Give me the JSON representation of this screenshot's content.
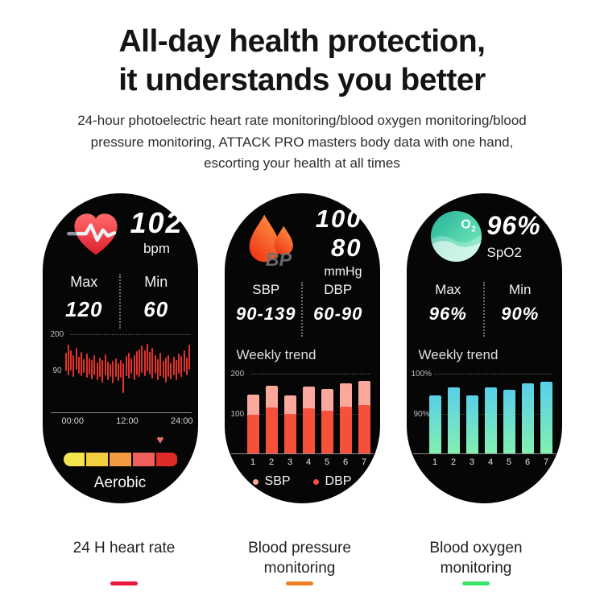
{
  "header": {
    "title_line1": "All-day health protection,",
    "title_line2": "it understands you better",
    "subtitle_line1": "24-hour photoelectric heart rate monitoring/blood oxygen monitoring/blood",
    "subtitle_line2": "pressure monitoring, ATTACK PRO masters body data with one hand,",
    "subtitle_line3": "escorting your health at all times"
  },
  "screens": {
    "heart_rate": {
      "value": "102",
      "unit": "bpm",
      "max_label": "Max",
      "max_value": "120",
      "min_label": "Min",
      "min_value": "60",
      "zone_label": "Aerobic",
      "zone_colors": [
        "#f4e44e",
        "#f2cf3e",
        "#f29a40",
        "#ef5f5b",
        "#de2d28"
      ],
      "zone_marker_icon": "heart-icon",
      "zone_marker_glyph": "♥"
    },
    "blood_pressure": {
      "icon_text": "BP",
      "sys_value": "100",
      "dia_value": "80",
      "unit": "mmHg",
      "sbp_label": "SBP",
      "sbp_range": "90-139",
      "dbp_label": "DBP",
      "dbp_range": "60-90",
      "trend_title": "Weekly trend"
    },
    "blood_oxygen": {
      "icon_text": "O2",
      "value": "96%",
      "unit": "SpO2",
      "max_label": "Max",
      "max_value": "96%",
      "min_label": "Min",
      "min_value": "90%",
      "trend_title": "Weekly trend"
    }
  },
  "captions": [
    {
      "line1": "24 H heart rate",
      "line2": "",
      "color": "#e8173f"
    },
    {
      "line1": "Blood pressure",
      "line2": "monitoring",
      "color": "#ee7f22"
    },
    {
      "line1": "Blood oxygen",
      "line2": "monitoring",
      "color": "#3be465"
    }
  ],
  "chart_data": [
    {
      "id": "heart-rate-24h",
      "type": "bar",
      "title": "",
      "ylabel": "bpm",
      "yticks": [
        "200",
        "90"
      ],
      "ylim": [
        -40,
        200
      ],
      "xticks": [
        "00:00",
        "12:00",
        "24:00"
      ],
      "grid": "dotted-top",
      "bar_color": "#e1332b",
      "ranges": [
        [
          85,
          142
        ],
        [
          75,
          168
        ],
        [
          88,
          150
        ],
        [
          70,
          136
        ],
        [
          92,
          158
        ],
        [
          78,
          130
        ],
        [
          72,
          146
        ],
        [
          82,
          124
        ],
        [
          66,
          140
        ],
        [
          76,
          126
        ],
        [
          62,
          120
        ],
        [
          74,
          136
        ],
        [
          58,
          114
        ],
        [
          70,
          128
        ],
        [
          52,
          120
        ],
        [
          74,
          138
        ],
        [
          60,
          116
        ],
        [
          68,
          108
        ],
        [
          48,
          118
        ],
        [
          70,
          126
        ],
        [
          56,
          110
        ],
        [
          66,
          122
        ],
        [
          20,
          112
        ],
        [
          72,
          134
        ],
        [
          64,
          142
        ],
        [
          78,
          126
        ],
        [
          58,
          136
        ],
        [
          74,
          148
        ],
        [
          68,
          154
        ],
        [
          82,
          166
        ],
        [
          72,
          150
        ],
        [
          86,
          170
        ],
        [
          76,
          146
        ],
        [
          64,
          158
        ],
        [
          78,
          136
        ],
        [
          58,
          124
        ],
        [
          72,
          142
        ],
        [
          66,
          118
        ],
        [
          52,
          128
        ],
        [
          70,
          136
        ],
        [
          62,
          114
        ],
        [
          74,
          130
        ],
        [
          58,
          122
        ],
        [
          78,
          140
        ],
        [
          68,
          132
        ],
        [
          84,
          150
        ],
        [
          74,
          128
        ],
        [
          92,
          168
        ]
      ]
    },
    {
      "id": "blood-pressure-weekly",
      "type": "stacked-bar",
      "title": "Weekly trend",
      "categories": [
        "1",
        "2",
        "3",
        "4",
        "5",
        "6",
        "7"
      ],
      "yticks": [
        "200",
        "100"
      ],
      "ylim": [
        0,
        200
      ],
      "grid": "dotted",
      "legend_position": "bottom",
      "series": [
        {
          "name": "SBP",
          "color": "#f9a89b",
          "values": [
            148,
            170,
            146,
            168,
            161,
            176,
            181
          ]
        },
        {
          "name": "DBP",
          "color": "#f4503a",
          "values": [
            98,
            115,
            99,
            113,
            108,
            118,
            122
          ]
        }
      ]
    },
    {
      "id": "blood-oxygen-weekly",
      "type": "bar",
      "title": "Weekly trend",
      "categories": [
        "1",
        "2",
        "3",
        "4",
        "5",
        "6",
        "7"
      ],
      "yticks": [
        "100%",
        "90%"
      ],
      "ylim": [
        80,
        100
      ],
      "grid": "dotted",
      "bar_gradient": [
        "#58cfe9",
        "#83f0b1"
      ],
      "values": [
        94.5,
        96.5,
        94.5,
        96.5,
        96,
        97.5,
        98
      ]
    }
  ]
}
